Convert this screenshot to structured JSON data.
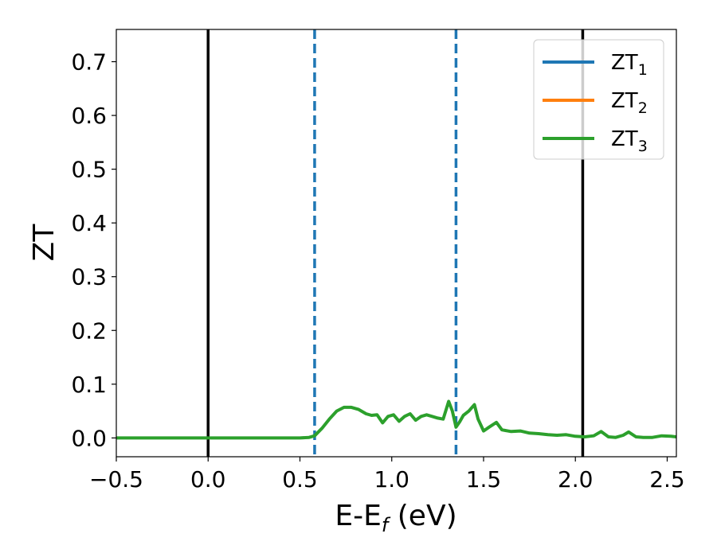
{
  "chart_data": {
    "type": "line",
    "title": "",
    "xlabel": {
      "main": "E-E",
      "sub": "f",
      "unit": " (eV)"
    },
    "ylabel": "ZT",
    "xlim": [
      -0.5,
      2.55
    ],
    "ylim": [
      -0.035,
      0.76
    ],
    "xticks": [
      -0.5,
      0.0,
      0.5,
      1.0,
      1.5,
      2.0,
      2.5
    ],
    "xtick_labels": [
      "−0.5",
      "0.0",
      "0.5",
      "1.0",
      "1.5",
      "2.0",
      "2.5"
    ],
    "yticks": [
      0.0,
      0.1,
      0.2,
      0.3,
      0.4,
      0.5,
      0.6,
      0.7
    ],
    "ytick_labels": [
      "0.0",
      "0.1",
      "0.2",
      "0.3",
      "0.4",
      "0.5",
      "0.6",
      "0.7"
    ],
    "grid": false,
    "legend_position": "top-right",
    "series": [
      {
        "name": "ZT",
        "name_sub": "1",
        "color": "#1f77b4",
        "x": [],
        "y": []
      },
      {
        "name": "ZT",
        "name_sub": "2",
        "color": "#ff7f0e",
        "x": [],
        "y": []
      },
      {
        "name": "ZT",
        "name_sub": "3",
        "color": "#2ca02c",
        "x": [
          -0.5,
          0.0,
          0.5,
          0.55,
          0.58,
          0.62,
          0.66,
          0.7,
          0.74,
          0.78,
          0.82,
          0.86,
          0.89,
          0.92,
          0.95,
          0.98,
          1.01,
          1.04,
          1.07,
          1.1,
          1.13,
          1.16,
          1.19,
          1.22,
          1.25,
          1.28,
          1.31,
          1.33,
          1.35,
          1.37,
          1.39,
          1.42,
          1.45,
          1.47,
          1.5,
          1.53,
          1.57,
          1.6,
          1.65,
          1.7,
          1.75,
          1.8,
          1.85,
          1.9,
          1.95,
          2.0,
          2.05,
          2.1,
          2.14,
          2.18,
          2.22,
          2.26,
          2.29,
          2.33,
          2.37,
          2.42,
          2.47,
          2.52,
          2.55
        ],
        "y": [
          0.0,
          0.0,
          0.0,
          0.001,
          0.004,
          0.018,
          0.035,
          0.05,
          0.057,
          0.057,
          0.053,
          0.045,
          0.042,
          0.043,
          0.028,
          0.04,
          0.043,
          0.031,
          0.04,
          0.045,
          0.033,
          0.04,
          0.043,
          0.04,
          0.037,
          0.035,
          0.068,
          0.05,
          0.02,
          0.03,
          0.042,
          0.05,
          0.062,
          0.035,
          0.013,
          0.02,
          0.029,
          0.015,
          0.012,
          0.013,
          0.009,
          0.008,
          0.006,
          0.005,
          0.006,
          0.003,
          0.002,
          0.004,
          0.012,
          0.002,
          0.001,
          0.005,
          0.011,
          0.002,
          0.001,
          0.001,
          0.004,
          0.003,
          0.002
        ]
      }
    ],
    "vlines": [
      {
        "x": 0.0,
        "color": "#000000",
        "style": "solid"
      },
      {
        "x": 0.58,
        "color": "#1f77b4",
        "style": "dashed"
      },
      {
        "x": 1.35,
        "color": "#1f77b4",
        "style": "dashed"
      },
      {
        "x": 2.04,
        "color": "#000000",
        "style": "solid"
      }
    ]
  }
}
